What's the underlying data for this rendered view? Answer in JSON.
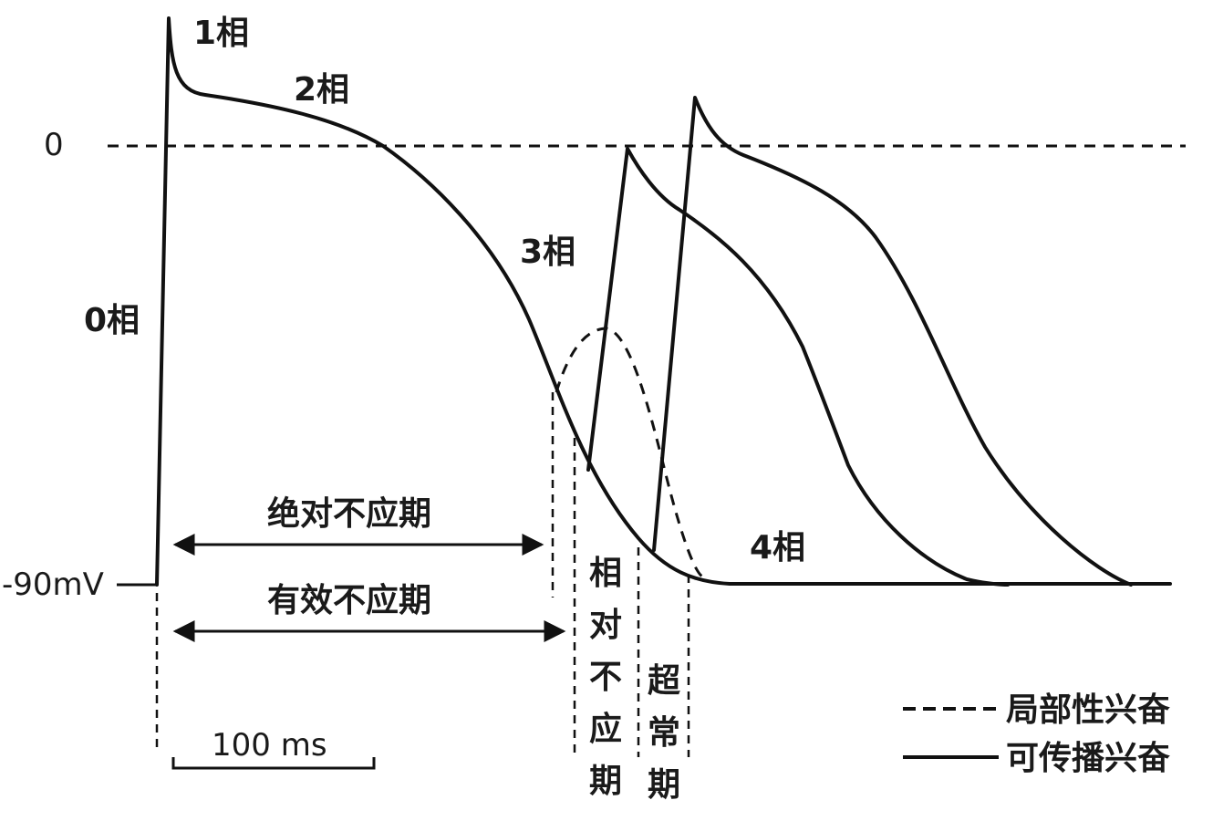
{
  "labels": {
    "phase1": "1相",
    "phase2": "2相",
    "phase0": "0相",
    "phase3": "3相",
    "phase4": "4相",
    "zero": "0",
    "resting": "-90mV",
    "scale": "100 ms"
  },
  "periods": {
    "absolute": "绝对不应期",
    "effective": "有效不应期",
    "relative": [
      "相",
      "对",
      "不",
      "应",
      "期"
    ],
    "supernormal": [
      "超",
      "常",
      "期"
    ]
  },
  "legend": {
    "local": "局部性兴奋",
    "propagated": "可传播兴奋"
  }
}
